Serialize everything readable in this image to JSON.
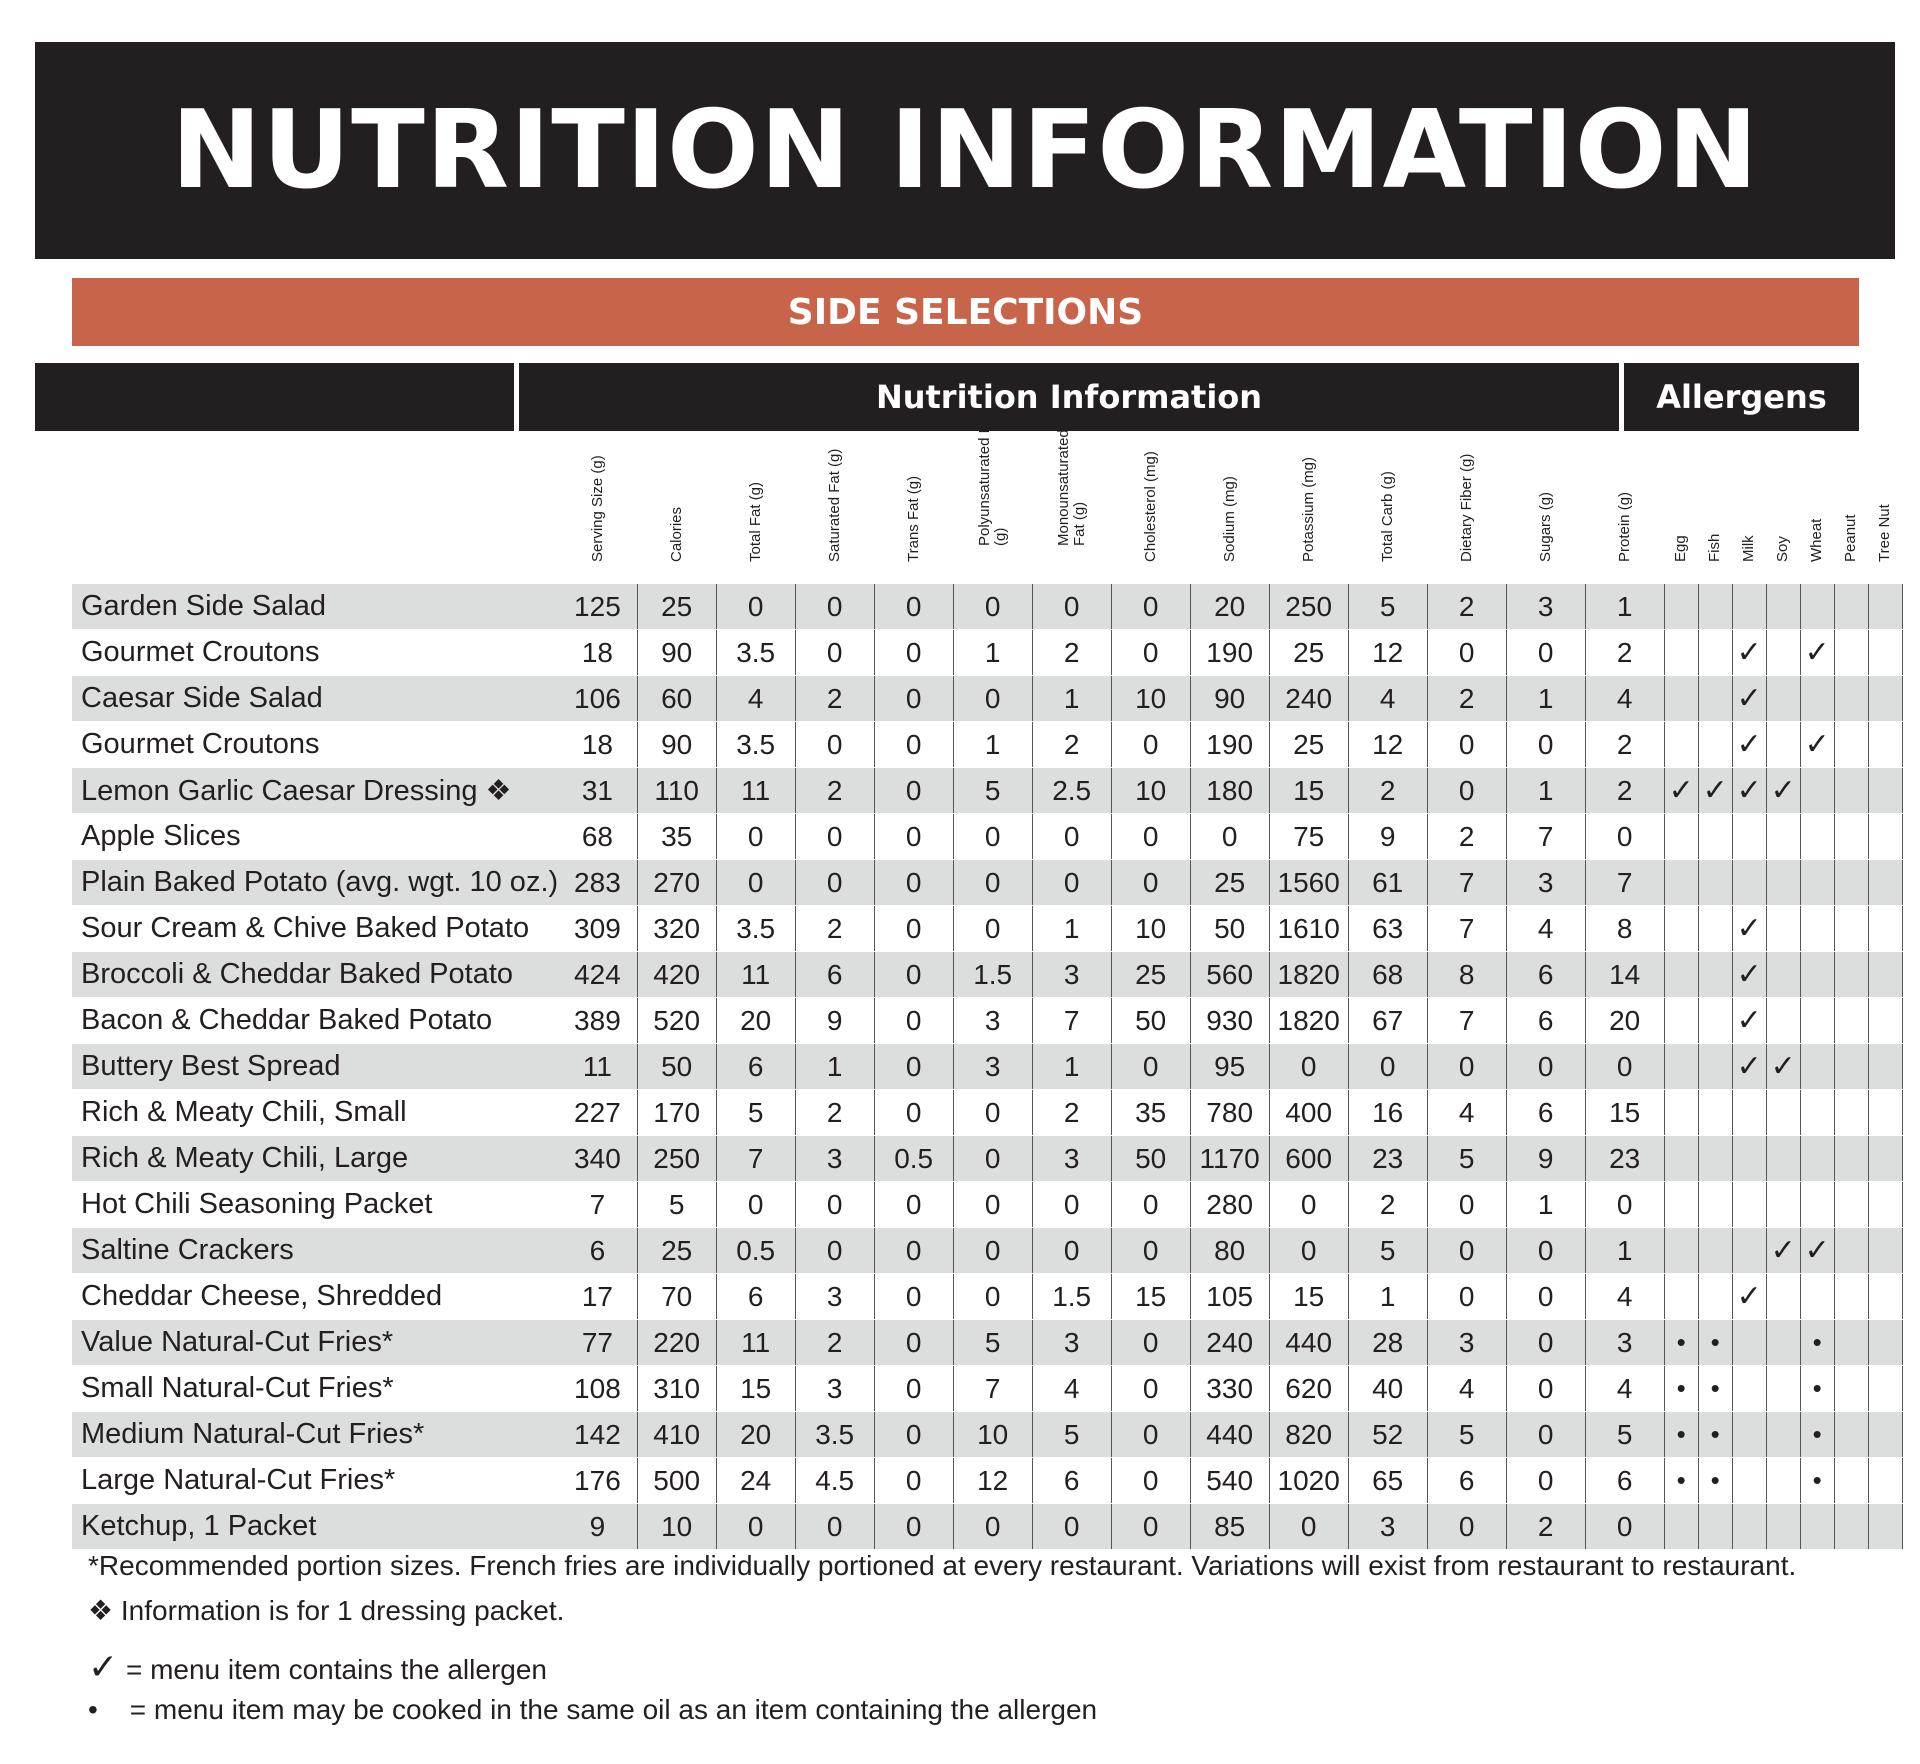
{
  "title": "NUTRITION INFORMATION",
  "section": "SIDE SELECTIONS",
  "groups": {
    "nutrition": "Nutrition Information",
    "allergens": "Allergens"
  },
  "columns": [
    "Serving Size (g)",
    "Calories",
    "Total Fat (g)",
    "Saturated Fat (g)",
    "Trans Fat (g)",
    "Polyunsaturated Fat (g)",
    "Monounsaturated Fat (g)",
    "Cholesterol (mg)",
    "Sodium (mg)",
    "Potassium (mg)",
    "Total Carb (g)",
    "Dietary Fiber (g)",
    "Sugars (g)",
    "Protein (g)"
  ],
  "allergen_columns": [
    "Egg",
    "Fish",
    "Milk",
    "Soy",
    "Wheat",
    "Peanut",
    "Tree Nut"
  ],
  "rows": [
    {
      "name": "Garden Side Salad",
      "values": [
        "125",
        "25",
        "0",
        "0",
        "0",
        "0",
        "0",
        "0",
        "20",
        "250",
        "5",
        "2",
        "3",
        "1"
      ],
      "allergens": [
        "",
        "",
        "",
        "",
        "",
        "",
        ""
      ]
    },
    {
      "name": "Gourmet Croutons",
      "values": [
        "18",
        "90",
        "3.5",
        "0",
        "0",
        "1",
        "2",
        "0",
        "190",
        "25",
        "12",
        "0",
        "0",
        "2"
      ],
      "allergens": [
        "",
        "",
        "✓",
        "",
        "✓",
        "",
        ""
      ]
    },
    {
      "name": "Caesar Side Salad",
      "values": [
        "106",
        "60",
        "4",
        "2",
        "0",
        "0",
        "1",
        "10",
        "90",
        "240",
        "4",
        "2",
        "1",
        "4"
      ],
      "allergens": [
        "",
        "",
        "✓",
        "",
        "",
        "",
        ""
      ]
    },
    {
      "name": "Gourmet Croutons",
      "values": [
        "18",
        "90",
        "3.5",
        "0",
        "0",
        "1",
        "2",
        "0",
        "190",
        "25",
        "12",
        "0",
        "0",
        "2"
      ],
      "allergens": [
        "",
        "",
        "✓",
        "",
        "✓",
        "",
        ""
      ]
    },
    {
      "name": "Lemon Garlic Caesar Dressing ❖",
      "values": [
        "31",
        "110",
        "11",
        "2",
        "0",
        "5",
        "2.5",
        "10",
        "180",
        "15",
        "2",
        "0",
        "1",
        "2"
      ],
      "allergens": [
        "✓",
        "✓",
        "✓",
        "✓",
        "",
        "",
        ""
      ]
    },
    {
      "name": "Apple Slices",
      "values": [
        "68",
        "35",
        "0",
        "0",
        "0",
        "0",
        "0",
        "0",
        "0",
        "75",
        "9",
        "2",
        "7",
        "0"
      ],
      "allergens": [
        "",
        "",
        "",
        "",
        "",
        "",
        ""
      ]
    },
    {
      "name": "Plain Baked Potato (avg. wgt. 10 oz.)",
      "values": [
        "283",
        "270",
        "0",
        "0",
        "0",
        "0",
        "0",
        "0",
        "25",
        "1560",
        "61",
        "7",
        "3",
        "7"
      ],
      "allergens": [
        "",
        "",
        "",
        "",
        "",
        "",
        ""
      ]
    },
    {
      "name": "Sour Cream & Chive Baked Potato",
      "values": [
        "309",
        "320",
        "3.5",
        "2",
        "0",
        "0",
        "1",
        "10",
        "50",
        "1610",
        "63",
        "7",
        "4",
        "8"
      ],
      "allergens": [
        "",
        "",
        "✓",
        "",
        "",
        "",
        ""
      ]
    },
    {
      "name": "Broccoli & Cheddar Baked Potato",
      "values": [
        "424",
        "420",
        "11",
        "6",
        "0",
        "1.5",
        "3",
        "25",
        "560",
        "1820",
        "68",
        "8",
        "6",
        "14"
      ],
      "allergens": [
        "",
        "",
        "✓",
        "",
        "",
        "",
        ""
      ]
    },
    {
      "name": "Bacon & Cheddar Baked Potato",
      "values": [
        "389",
        "520",
        "20",
        "9",
        "0",
        "3",
        "7",
        "50",
        "930",
        "1820",
        "67",
        "7",
        "6",
        "20"
      ],
      "allergens": [
        "",
        "",
        "✓",
        "",
        "",
        "",
        ""
      ]
    },
    {
      "name": "Buttery Best Spread",
      "values": [
        "11",
        "50",
        "6",
        "1",
        "0",
        "3",
        "1",
        "0",
        "95",
        "0",
        "0",
        "0",
        "0",
        "0"
      ],
      "allergens": [
        "",
        "",
        "✓",
        "✓",
        "",
        "",
        ""
      ]
    },
    {
      "name": "Rich & Meaty Chili, Small",
      "values": [
        "227",
        "170",
        "5",
        "2",
        "0",
        "0",
        "2",
        "35",
        "780",
        "400",
        "16",
        "4",
        "6",
        "15"
      ],
      "allergens": [
        "",
        "",
        "",
        "",
        "",
        "",
        ""
      ]
    },
    {
      "name": "Rich & Meaty Chili, Large",
      "values": [
        "340",
        "250",
        "7",
        "3",
        "0.5",
        "0",
        "3",
        "50",
        "1170",
        "600",
        "23",
        "5",
        "9",
        "23"
      ],
      "allergens": [
        "",
        "",
        "",
        "",
        "",
        "",
        ""
      ]
    },
    {
      "name": "Hot Chili Seasoning Packet",
      "values": [
        "7",
        "5",
        "0",
        "0",
        "0",
        "0",
        "0",
        "0",
        "280",
        "0",
        "2",
        "0",
        "1",
        "0"
      ],
      "allergens": [
        "",
        "",
        "",
        "",
        "",
        "",
        ""
      ]
    },
    {
      "name": "Saltine Crackers",
      "values": [
        "6",
        "25",
        "0.5",
        "0",
        "0",
        "0",
        "0",
        "0",
        "80",
        "0",
        "5",
        "0",
        "0",
        "1"
      ],
      "allergens": [
        "",
        "",
        "",
        "✓",
        "✓",
        "",
        ""
      ]
    },
    {
      "name": "Cheddar Cheese, Shredded",
      "values": [
        "17",
        "70",
        "6",
        "3",
        "0",
        "0",
        "1.5",
        "15",
        "105",
        "15",
        "1",
        "0",
        "0",
        "4"
      ],
      "allergens": [
        "",
        "",
        "✓",
        "",
        "",
        "",
        ""
      ]
    },
    {
      "name": "Value Natural-Cut Fries*",
      "values": [
        "77",
        "220",
        "11",
        "2",
        "0",
        "5",
        "3",
        "0",
        "240",
        "440",
        "28",
        "3",
        "0",
        "3"
      ],
      "allergens": [
        "•",
        "•",
        "",
        "",
        "•",
        "",
        ""
      ]
    },
    {
      "name": "Small Natural-Cut Fries*",
      "values": [
        "108",
        "310",
        "15",
        "3",
        "0",
        "7",
        "4",
        "0",
        "330",
        "620",
        "40",
        "4",
        "0",
        "4"
      ],
      "allergens": [
        "•",
        "•",
        "",
        "",
        "•",
        "",
        ""
      ]
    },
    {
      "name": "Medium Natural-Cut Fries*",
      "values": [
        "142",
        "410",
        "20",
        "3.5",
        "0",
        "10",
        "5",
        "0",
        "440",
        "820",
        "52",
        "5",
        "0",
        "5"
      ],
      "allergens": [
        "•",
        "•",
        "",
        "",
        "•",
        "",
        ""
      ]
    },
    {
      "name": "Large Natural-Cut Fries*",
      "values": [
        "176",
        "500",
        "24",
        "4.5",
        "0",
        "12",
        "6",
        "0",
        "540",
        "1020",
        "65",
        "6",
        "0",
        "6"
      ],
      "allergens": [
        "•",
        "•",
        "",
        "",
        "•",
        "",
        ""
      ]
    },
    {
      "name": "Ketchup, 1 Packet",
      "values": [
        "9",
        "10",
        "0",
        "0",
        "0",
        "0",
        "0",
        "0",
        "85",
        "0",
        "3",
        "0",
        "2",
        "0"
      ],
      "allergens": [
        "",
        "",
        "",
        "",
        "",
        "",
        ""
      ]
    }
  ],
  "footnotes": {
    "portion": "*Recommended portion sizes. French fries are individually portioned at every restaurant. Variations will exist from restaurant to restaurant.",
    "dressing": "❖ Information is for 1 dressing packet.",
    "check_symbol": "✓",
    "check_text": "= menu item contains the allergen",
    "dot_symbol": "•",
    "dot_text": "= menu item may be cooked in the same oil as an item containing the allergen"
  }
}
